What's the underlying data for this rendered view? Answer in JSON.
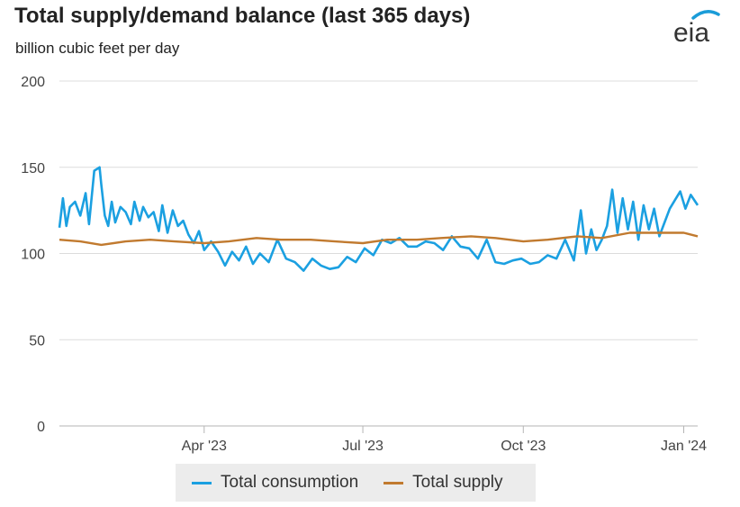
{
  "header": {
    "title": "Total supply/demand balance (last 365 days)",
    "subtitle": "billion cubic feet per day",
    "logo_text": "eia"
  },
  "colors": {
    "consumption": "#1ba0e1",
    "supply": "#c17a2f",
    "grid": "#dcdcdc",
    "logo_arc": "#1a9cd8",
    "legend_bg": "#ececec"
  },
  "chart_data": {
    "type": "line",
    "title": "Total supply/demand balance (last 365 days)",
    "ylabel": "billion cubic feet per day",
    "xlabel": "",
    "ylim": [
      0,
      200
    ],
    "yticks": [
      "0",
      "50",
      "100",
      "150",
      "200"
    ],
    "xticks": [
      "Apr '23",
      "Jul '23",
      "Oct '23",
      "Jan '24"
    ],
    "x_range": [
      "2023-01-08",
      "2024-01-09"
    ],
    "grid": true,
    "legend_position": "bottom",
    "series": [
      {
        "name": "Total consumption",
        "dates": [
          "2023-01-08",
          "2023-01-10",
          "2023-01-12",
          "2023-01-14",
          "2023-01-17",
          "2023-01-20",
          "2023-01-23",
          "2023-01-25",
          "2023-01-28",
          "2023-01-31",
          "2023-02-01",
          "2023-02-03",
          "2023-02-05",
          "2023-02-07",
          "2023-02-09",
          "2023-02-12",
          "2023-02-15",
          "2023-02-18",
          "2023-02-20",
          "2023-02-23",
          "2023-02-25",
          "2023-02-28",
          "2023-03-03",
          "2023-03-06",
          "2023-03-08",
          "2023-03-11",
          "2023-03-14",
          "2023-03-17",
          "2023-03-20",
          "2023-03-23",
          "2023-03-26",
          "2023-03-29",
          "2023-04-01",
          "2023-04-05",
          "2023-04-09",
          "2023-04-13",
          "2023-04-17",
          "2023-04-21",
          "2023-04-25",
          "2023-04-29",
          "2023-05-03",
          "2023-05-08",
          "2023-05-13",
          "2023-05-18",
          "2023-05-23",
          "2023-05-28",
          "2023-06-02",
          "2023-06-07",
          "2023-06-12",
          "2023-06-17",
          "2023-06-22",
          "2023-06-27",
          "2023-07-02",
          "2023-07-07",
          "2023-07-12",
          "2023-07-17",
          "2023-07-22",
          "2023-07-27",
          "2023-08-01",
          "2023-08-06",
          "2023-08-11",
          "2023-08-16",
          "2023-08-21",
          "2023-08-26",
          "2023-08-31",
          "2023-09-05",
          "2023-09-10",
          "2023-09-15",
          "2023-09-20",
          "2023-09-25",
          "2023-09-30",
          "2023-10-05",
          "2023-10-10",
          "2023-10-15",
          "2023-10-20",
          "2023-10-25",
          "2023-10-30",
          "2023-11-03",
          "2023-11-06",
          "2023-11-09",
          "2023-11-12",
          "2023-11-15",
          "2023-11-18",
          "2023-11-21",
          "2023-11-24",
          "2023-11-27",
          "2023-11-30",
          "2023-12-03",
          "2023-12-06",
          "2023-12-09",
          "2023-12-12",
          "2023-12-15",
          "2023-12-18",
          "2023-12-21",
          "2023-12-24",
          "2023-12-27",
          "2023-12-30",
          "2024-01-02",
          "2024-01-05",
          "2024-01-09"
        ],
        "values": [
          115,
          132,
          116,
          127,
          130,
          122,
          135,
          117,
          148,
          150,
          140,
          122,
          116,
          130,
          118,
          127,
          124,
          117,
          130,
          119,
          127,
          121,
          124,
          113,
          128,
          112,
          125,
          116,
          119,
          111,
          106,
          113,
          102,
          107,
          101,
          93,
          101,
          96,
          104,
          94,
          100,
          95,
          108,
          97,
          95,
          90,
          97,
          93,
          91,
          92,
          98,
          95,
          103,
          99,
          108,
          106,
          109,
          104,
          104,
          107,
          106,
          102,
          110,
          104,
          103,
          97,
          108,
          95,
          94,
          96,
          97,
          94,
          95,
          99,
          97,
          108,
          96,
          125,
          100,
          114,
          102,
          108,
          116,
          137,
          112,
          132,
          114,
          130,
          108,
          128,
          114,
          126,
          110,
          118,
          126,
          131,
          136,
          126,
          134,
          128
        ]
      },
      {
        "name": "Total supply",
        "dates": [
          "2023-01-08",
          "2023-01-20",
          "2023-02-01",
          "2023-02-15",
          "2023-03-01",
          "2023-03-15",
          "2023-04-01",
          "2023-04-15",
          "2023-05-01",
          "2023-05-15",
          "2023-06-01",
          "2023-06-15",
          "2023-07-01",
          "2023-07-15",
          "2023-08-01",
          "2023-08-15",
          "2023-09-01",
          "2023-09-15",
          "2023-10-01",
          "2023-10-15",
          "2023-11-01",
          "2023-11-15",
          "2023-12-01",
          "2023-12-15",
          "2024-01-01",
          "2024-01-09"
        ],
        "values": [
          108,
          107,
          105,
          107,
          108,
          107,
          106,
          107,
          109,
          108,
          108,
          107,
          106,
          108,
          108,
          109,
          110,
          109,
          107,
          108,
          110,
          109,
          112,
          112,
          112,
          110
        ]
      }
    ]
  },
  "legend": {
    "items": [
      {
        "label": "Total consumption"
      },
      {
        "label": "Total supply"
      }
    ]
  }
}
